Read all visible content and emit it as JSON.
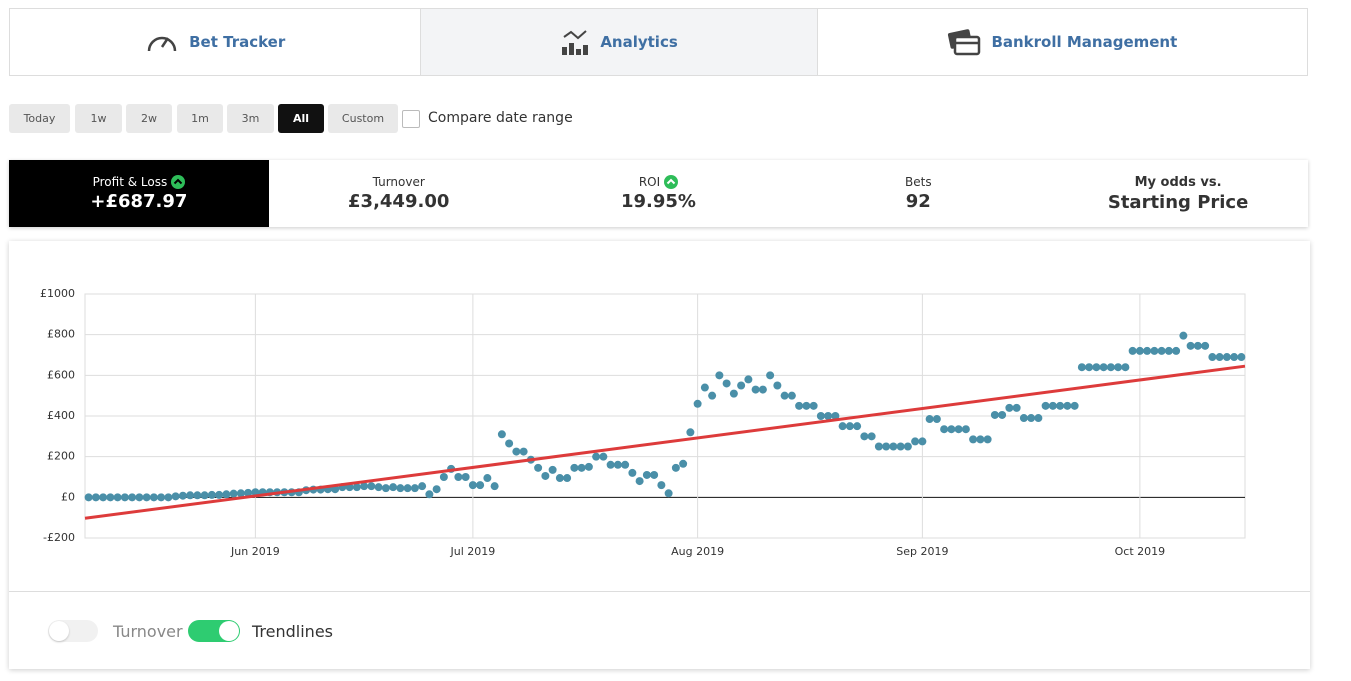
{
  "tabs": [
    "Bet Tracker",
    "Analytics",
    "Bankroll Management"
  ],
  "ranges": [
    "Today",
    "1w",
    "2w",
    "1m",
    "3m",
    "All",
    "Custom"
  ],
  "compare": "Compare date range",
  "stats": [
    {
      "label": "Profit & Loss",
      "value": "+£687.97"
    },
    {
      "label": "Turnover",
      "value": "£3,449.00"
    },
    {
      "label": "ROI",
      "value": "19.95%"
    },
    {
      "label": "Bets",
      "value": "92"
    },
    {
      "label": "My odds vs.",
      "value": "Starting Price"
    }
  ],
  "toggles": [
    "Turnover",
    "Trendlines"
  ],
  "chart_data": {
    "type": "scatter",
    "color": "#4a8fa8",
    "x": [
      -23,
      -22,
      -21,
      -20,
      -19,
      -18,
      -17,
      -16,
      -15,
      -14,
      -13,
      -12,
      -11,
      -10,
      -9,
      -8,
      -7,
      -6,
      -5,
      -4,
      -3,
      -2,
      -1,
      0,
      1,
      2,
      3,
      4,
      5,
      6,
      7,
      8,
      9,
      10,
      11,
      12,
      13,
      14,
      15,
      16,
      17,
      18,
      19,
      20,
      21,
      22,
      23,
      24,
      25,
      26,
      27,
      28,
      29,
      30,
      31,
      32,
      33,
      34,
      35,
      36,
      37,
      38,
      39,
      40,
      41,
      42,
      43,
      44,
      45,
      46,
      47,
      48,
      49,
      50,
      51,
      52,
      53,
      54,
      55,
      56,
      57,
      58,
      59,
      60,
      61,
      62,
      63,
      64,
      65,
      66,
      67,
      68,
      69,
      70,
      71,
      72,
      73,
      74,
      75,
      76,
      77,
      78,
      79,
      80,
      81,
      82,
      83,
      84,
      85,
      86,
      87,
      88,
      89,
      90,
      91,
      92,
      93,
      94,
      95,
      96,
      97,
      98,
      99,
      100,
      101,
      102,
      103,
      104,
      105,
      106,
      107,
      108,
      109,
      110,
      111,
      112,
      113,
      114,
      115,
      116,
      117,
      118,
      119,
      120,
      121,
      122,
      123,
      124,
      125,
      126,
      127,
      128,
      129,
      130,
      131,
      132,
      133,
      134,
      135,
      136
    ],
    "values": [
      0,
      0,
      0,
      0,
      0,
      0,
      0,
      0,
      0,
      0,
      0,
      0,
      5,
      8,
      10,
      10,
      10,
      12,
      12,
      15,
      18,
      20,
      22,
      25,
      25,
      25,
      25,
      25,
      25,
      25,
      35,
      38,
      38,
      40,
      40,
      50,
      50,
      50,
      55,
      55,
      50,
      45,
      50,
      45,
      45,
      45,
      55,
      15,
      40,
      100,
      140,
      100,
      100,
      60,
      60,
      95,
      55,
      310,
      265,
      225,
      225,
      185,
      145,
      105,
      135,
      95,
      95,
      145,
      145,
      150,
      200,
      200,
      160,
      160,
      160,
      120,
      80,
      110,
      110,
      60,
      20,
      145,
      165,
      320,
      460,
      540,
      500,
      600,
      560,
      510,
      550,
      580,
      530,
      530,
      600,
      550,
      500,
      500,
      450,
      450,
      450,
      400,
      400,
      400,
      350,
      350,
      350,
      300,
      300,
      250,
      250,
      250,
      250,
      250,
      275,
      275,
      385,
      385,
      335,
      335,
      335,
      335,
      285,
      285,
      285,
      405,
      405,
      440,
      440,
      390,
      390,
      390,
      450,
      450,
      450,
      450,
      450,
      640,
      640,
      640,
      640,
      640,
      640,
      640,
      720,
      720,
      720,
      720,
      720,
      720,
      720,
      795,
      745,
      745,
      745,
      690,
      690,
      690,
      690,
      690
    ],
    "trendline": {
      "x": [
        -23.5,
        136.5
      ],
      "values": [
        -103,
        645
      ],
      "color": "#dd3b3b"
    },
    "xlim": [
      -23.5,
      136.5
    ],
    "xticks": [
      {
        "value": 0,
        "label": "Jun 2019"
      },
      {
        "value": 30,
        "label": "Jul 2019"
      },
      {
        "value": 61,
        "label": "Aug 2019"
      },
      {
        "value": 92,
        "label": "Sep 2019"
      },
      {
        "value": 122,
        "label": "Oct 2019"
      }
    ],
    "ylim": [
      -200,
      1000
    ],
    "yticks": [
      {
        "value": -200,
        "label": "-£200"
      },
      {
        "value": 0,
        "label": "£0"
      },
      {
        "value": 200,
        "label": "£200"
      },
      {
        "value": 400,
        "label": "£400"
      },
      {
        "value": 600,
        "label": "£600"
      },
      {
        "value": 800,
        "label": "£800"
      },
      {
        "value": 1000,
        "label": "£1000"
      }
    ],
    "grid": true
  }
}
